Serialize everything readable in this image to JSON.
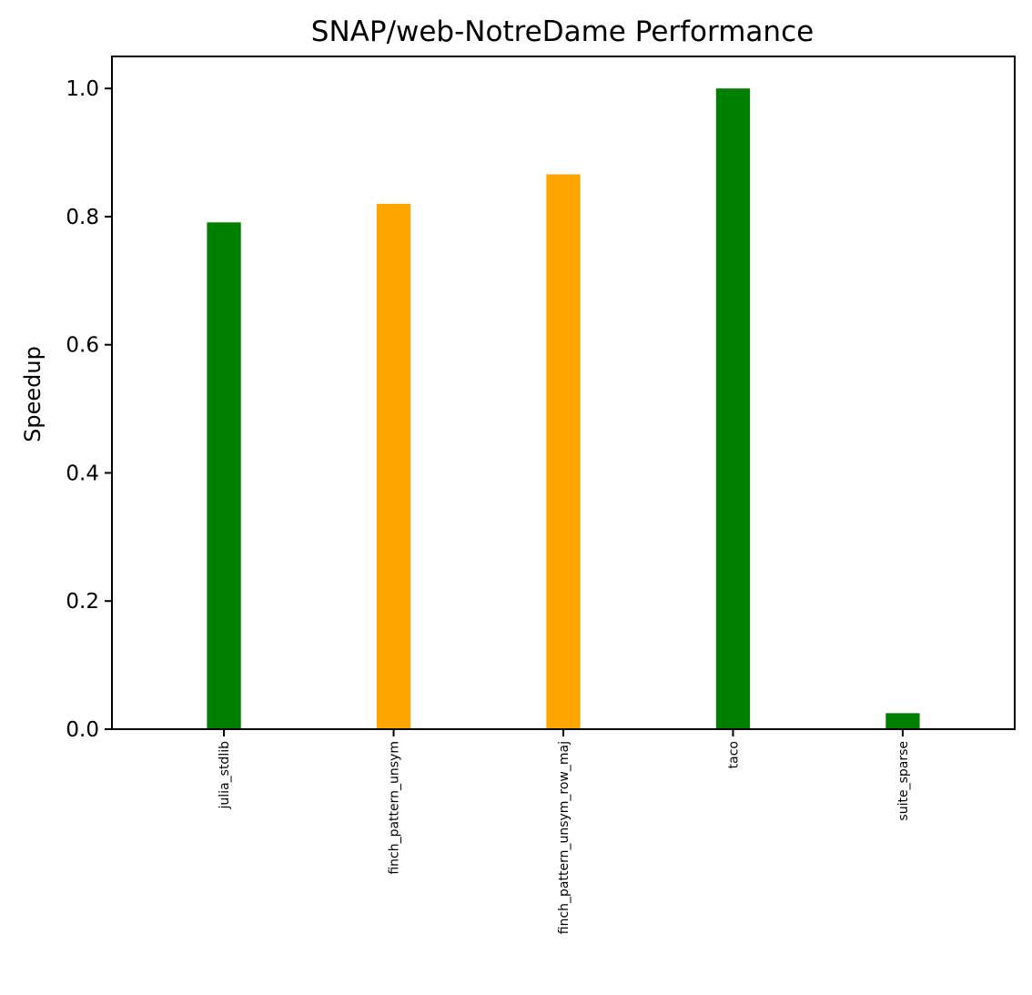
{
  "chart_data": {
    "type": "bar",
    "title": "SNAP/web-NotreDame Performance",
    "xlabel": "",
    "ylabel": "Speedup",
    "categories": [
      "julia_stdlib",
      "finch_pattern_unsym",
      "finch_pattern_unsym_row_maj",
      "taco",
      "suite_sparse"
    ],
    "values": [
      0.791,
      0.82,
      0.866,
      1.0,
      0.025
    ],
    "bar_colors": [
      "#008000",
      "#ffa500",
      "#ffa500",
      "#008000",
      "#008000"
    ],
    "ylim": [
      0,
      1.05
    ],
    "yticks": [
      0.0,
      0.2,
      0.4,
      0.6,
      0.8,
      1.0
    ],
    "ytick_labels": [
      "0.0",
      "0.2",
      "0.4",
      "0.6",
      "0.8",
      "1.0"
    ],
    "grid": false,
    "legend": "none"
  }
}
